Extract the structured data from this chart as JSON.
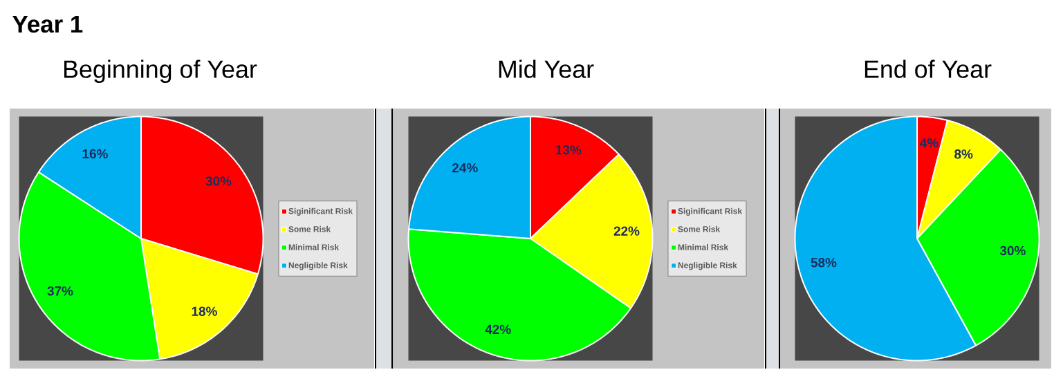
{
  "chart_data": [
    {
      "type": "pie",
      "title": "Beginning of Year",
      "annotations": [
        "Year 1"
      ],
      "categories": [
        "Siginificant Risk",
        "Some Risk",
        "Minimal Risk",
        "Negligible Risk"
      ],
      "values": [
        30,
        18,
        37,
        16
      ],
      "colors": [
        "#ff0000",
        "#ffff00",
        "#00ff00",
        "#00b0f0"
      ],
      "value_labels": [
        "30%",
        "18%",
        "37%",
        "16%"
      ],
      "legend": "right"
    },
    {
      "type": "pie",
      "title": "Mid Year",
      "categories": [
        "Siginificant Risk",
        "Some Risk",
        "Minimal Risk",
        "Negligible Risk"
      ],
      "values": [
        13,
        22,
        42,
        24
      ],
      "colors": [
        "#ff0000",
        "#ffff00",
        "#00ff00",
        "#00b0f0"
      ],
      "value_labels": [
        "13%",
        "22%",
        "42%",
        "24%"
      ],
      "legend": "right"
    },
    {
      "type": "pie",
      "title": "End of Year",
      "categories": [
        null,
        null,
        null,
        null
      ],
      "values": [
        4,
        8,
        30,
        58
      ],
      "colors": [
        "#ff0000",
        "#ffff00",
        "#00ff00",
        "#00b0f0"
      ],
      "value_labels": [
        "4%",
        "8%",
        "30%",
        "58%"
      ]
    }
  ]
}
